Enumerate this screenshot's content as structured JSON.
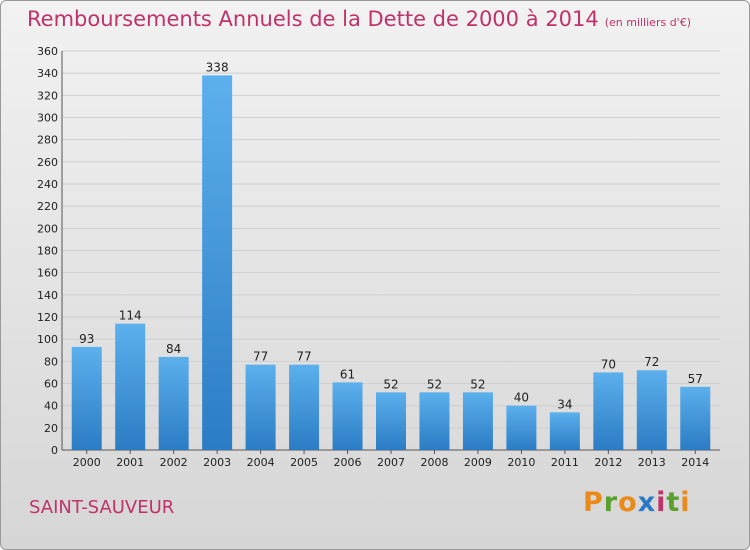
{
  "chart_data": {
    "type": "bar",
    "title": "Remboursements Annuels de la Dette de 2000 à 2014",
    "unit": "(en milliers d'€)",
    "categories": [
      "2000",
      "2001",
      "2002",
      "2003",
      "2004",
      "2005",
      "2006",
      "2007",
      "2008",
      "2009",
      "2010",
      "2011",
      "2012",
      "2013",
      "2014"
    ],
    "values": [
      93,
      114,
      84,
      338,
      77,
      77,
      61,
      52,
      52,
      52,
      40,
      34,
      70,
      72,
      57
    ],
    "xlabel": "",
    "ylabel": "",
    "ylim": [
      0,
      360
    ],
    "ytick_step": 20,
    "grid": true,
    "bar_color": "#3a8fd6"
  },
  "footer": {
    "city": "SAINT-SAUVEUR",
    "logo_letters": [
      "P",
      "r",
      "o",
      "x",
      "i",
      "t",
      "i"
    ],
    "logo_colors": [
      "#e98a1a",
      "#5aa02c",
      "#e98a1a",
      "#2a78c8",
      "#c0326a",
      "#5aa02c",
      "#e98a1a"
    ]
  }
}
